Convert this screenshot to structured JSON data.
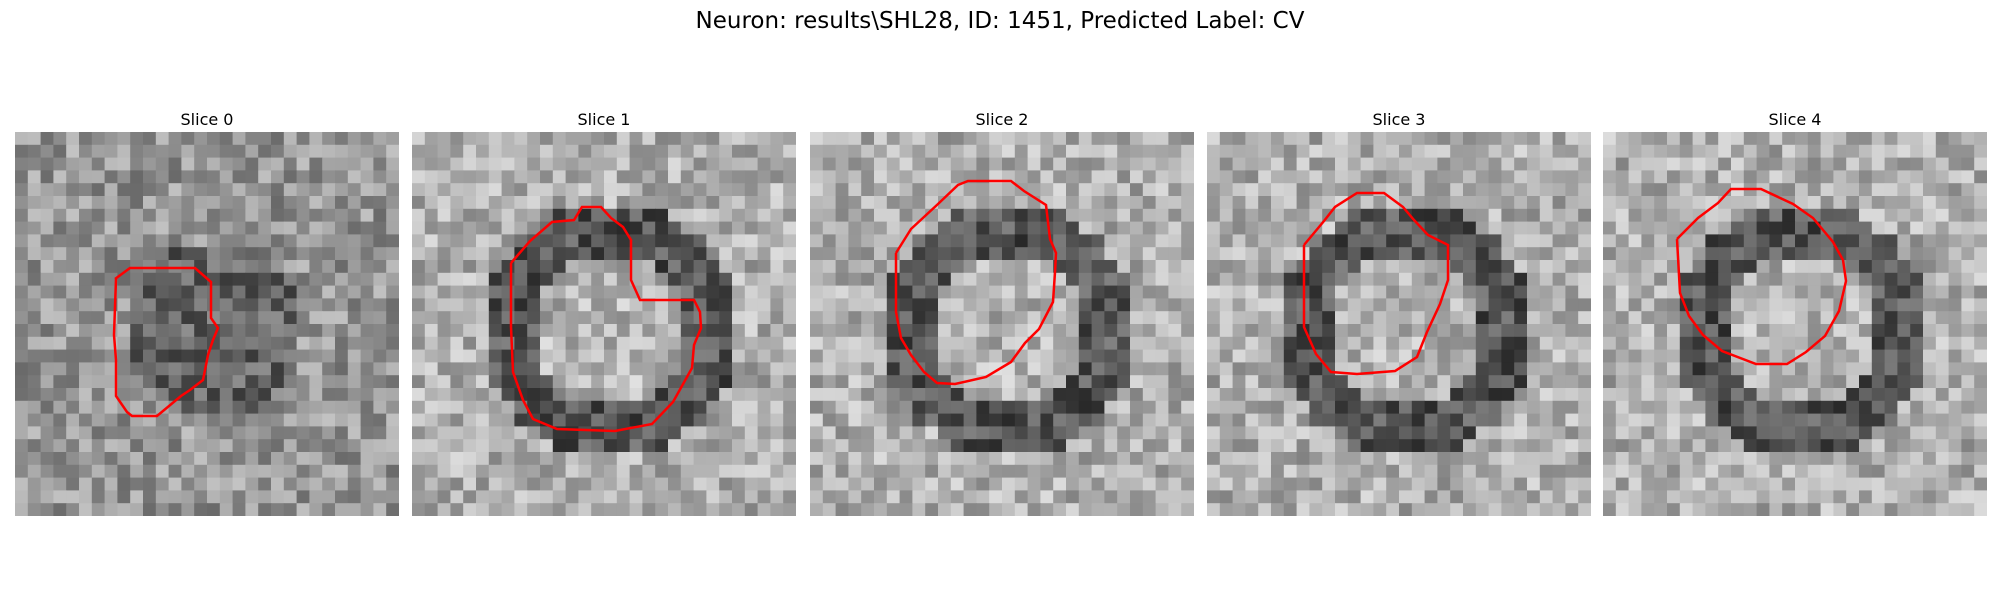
{
  "figure": {
    "title": "Neuron: results\\SHL28, ID: 1451, Predicted Label: CV",
    "contour_color": "#ff0000"
  },
  "slices": [
    {
      "label": "Slice 0"
    },
    {
      "label": "Slice 1"
    },
    {
      "label": "Slice 2"
    },
    {
      "label": "Slice 3"
    },
    {
      "label": "Slice 4"
    }
  ]
}
